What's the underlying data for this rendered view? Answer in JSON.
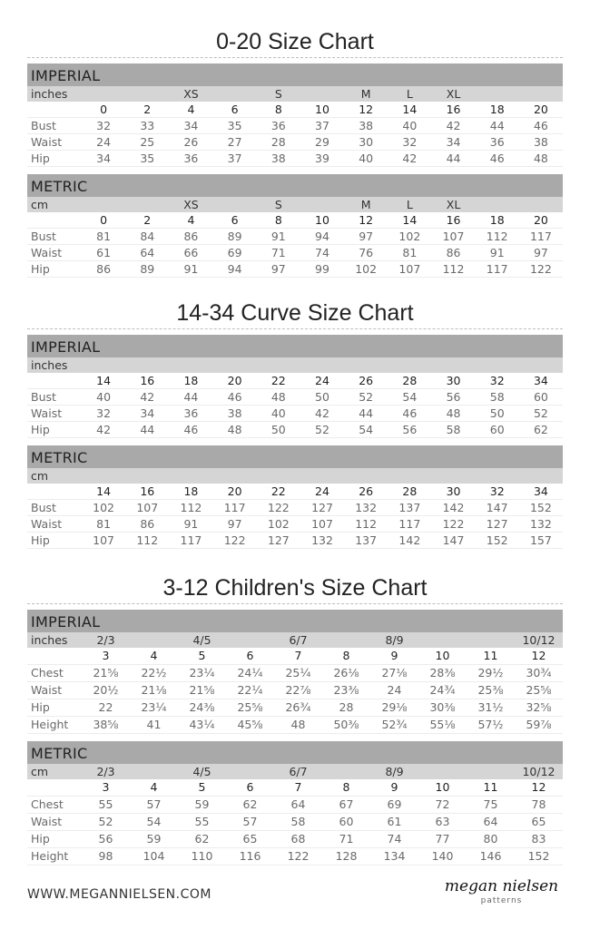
{
  "charts": [
    {
      "title": "0-20 Size Chart",
      "kids": false,
      "blocks": [
        {
          "header": "IMPERIAL",
          "unit": "inches",
          "groups": [
            "",
            "",
            "XS",
            "",
            "S",
            "",
            "M",
            "L",
            "XL",
            "",
            ""
          ],
          "sizes": [
            "0",
            "2",
            "4",
            "6",
            "8",
            "10",
            "12",
            "14",
            "16",
            "18",
            "20"
          ],
          "rows": [
            {
              "label": "Bust",
              "values": [
                "32",
                "33",
                "34",
                "35",
                "36",
                "37",
                "38",
                "40",
                "42",
                "44",
                "46"
              ]
            },
            {
              "label": "Waist",
              "values": [
                "24",
                "25",
                "26",
                "27",
                "28",
                "29",
                "30",
                "32",
                "34",
                "36",
                "38"
              ]
            },
            {
              "label": "Hip",
              "values": [
                "34",
                "35",
                "36",
                "37",
                "38",
                "39",
                "40",
                "42",
                "44",
                "46",
                "48"
              ]
            }
          ]
        },
        {
          "header": "METRIC",
          "unit": "cm",
          "groups": [
            "",
            "",
            "XS",
            "",
            "S",
            "",
            "M",
            "L",
            "XL",
            "",
            ""
          ],
          "sizes": [
            "0",
            "2",
            "4",
            "6",
            "8",
            "10",
            "12",
            "14",
            "16",
            "18",
            "20"
          ],
          "rows": [
            {
              "label": "Bust",
              "values": [
                "81",
                "84",
                "86",
                "89",
                "91",
                "94",
                "97",
                "102",
                "107",
                "112",
                "117"
              ]
            },
            {
              "label": "Waist",
              "values": [
                "61",
                "64",
                "66",
                "69",
                "71",
                "74",
                "76",
                "81",
                "86",
                "91",
                "97"
              ]
            },
            {
              "label": "Hip",
              "values": [
                "86",
                "89",
                "91",
                "94",
                "97",
                "99",
                "102",
                "107",
                "112",
                "117",
                "122"
              ]
            }
          ]
        }
      ]
    },
    {
      "title": "14-34 Curve Size Chart",
      "kids": false,
      "blocks": [
        {
          "header": "IMPERIAL",
          "unit": "inches",
          "groups": [
            "",
            "",
            "",
            "",
            "",
            "",
            "",
            "",
            "",
            "",
            ""
          ],
          "sizes": [
            "14",
            "16",
            "18",
            "20",
            "22",
            "24",
            "26",
            "28",
            "30",
            "32",
            "34"
          ],
          "rows": [
            {
              "label": "Bust",
              "values": [
                "40",
                "42",
                "44",
                "46",
                "48",
                "50",
                "52",
                "54",
                "56",
                "58",
                "60"
              ]
            },
            {
              "label": "Waist",
              "values": [
                "32",
                "34",
                "36",
                "38",
                "40",
                "42",
                "44",
                "46",
                "48",
                "50",
                "52"
              ]
            },
            {
              "label": "Hip",
              "values": [
                "42",
                "44",
                "46",
                "48",
                "50",
                "52",
                "54",
                "56",
                "58",
                "60",
                "62"
              ]
            }
          ]
        },
        {
          "header": "METRIC",
          "unit": "cm",
          "groups": [
            "",
            "",
            "",
            "",
            "",
            "",
            "",
            "",
            "",
            "",
            ""
          ],
          "sizes": [
            "14",
            "16",
            "18",
            "20",
            "22",
            "24",
            "26",
            "28",
            "30",
            "32",
            "34"
          ],
          "rows": [
            {
              "label": "Bust",
              "values": [
                "102",
                "107",
                "112",
                "117",
                "122",
                "127",
                "132",
                "137",
                "142",
                "147",
                "152"
              ]
            },
            {
              "label": "Waist",
              "values": [
                "81",
                "86",
                "91",
                "97",
                "102",
                "107",
                "112",
                "117",
                "122",
                "127",
                "132"
              ]
            },
            {
              "label": "Hip",
              "values": [
                "107",
                "112",
                "117",
                "122",
                "127",
                "132",
                "137",
                "142",
                "147",
                "152",
                "157"
              ]
            }
          ]
        }
      ]
    },
    {
      "title": "3-12 Children's Size Chart",
      "kids": true,
      "blocks": [
        {
          "header": "IMPERIAL",
          "unit": "inches",
          "groups": [
            "2/3",
            "",
            "4/5",
            "",
            "6/7",
            "",
            "8/9",
            "",
            "",
            "10/12"
          ],
          "sizes": [
            "3",
            "4",
            "5",
            "6",
            "7",
            "8",
            "9",
            "10",
            "11",
            "12"
          ],
          "rows": [
            {
              "label": "Chest",
              "values": [
                "21⅝",
                "22½",
                "23¼",
                "24¼",
                "25¼",
                "26⅛",
                "27⅛",
                "28⅜",
                "29½",
                "30¾"
              ]
            },
            {
              "label": "Waist",
              "values": [
                "20½",
                "21⅛",
                "21⅝",
                "22¼",
                "22⅞",
                "23⅜",
                "24",
                "24¾",
                "25⅜",
                "25⅝"
              ]
            },
            {
              "label": "Hip",
              "values": [
                "22",
                "23¼",
                "24⅜",
                "25⅝",
                "26¾",
                "28",
                "29⅛",
                "30⅜",
                "31½",
                "32⅝"
              ]
            },
            {
              "label": "Height",
              "values": [
                "38⅝",
                "41",
                "43¼",
                "45⅝",
                "48",
                "50⅜",
                "52¾",
                "55⅛",
                "57½",
                "59⅞"
              ]
            }
          ]
        },
        {
          "header": "METRIC",
          "unit": "cm",
          "groups": [
            "2/3",
            "",
            "4/5",
            "",
            "6/7",
            "",
            "8/9",
            "",
            "",
            "10/12"
          ],
          "sizes": [
            "3",
            "4",
            "5",
            "6",
            "7",
            "8",
            "9",
            "10",
            "11",
            "12"
          ],
          "rows": [
            {
              "label": "Chest",
              "values": [
                "55",
                "57",
                "59",
                "62",
                "64",
                "67",
                "69",
                "72",
                "75",
                "78"
              ]
            },
            {
              "label": "Waist",
              "values": [
                "52",
                "54",
                "55",
                "57",
                "58",
                "60",
                "61",
                "63",
                "64",
                "65"
              ]
            },
            {
              "label": "Hip",
              "values": [
                "56",
                "59",
                "62",
                "65",
                "68",
                "71",
                "74",
                "77",
                "80",
                "83"
              ]
            },
            {
              "label": "Height",
              "values": [
                "98",
                "104",
                "110",
                "116",
                "122",
                "128",
                "134",
                "140",
                "146",
                "152"
              ]
            }
          ]
        }
      ]
    }
  ],
  "footer": {
    "url": "WWW.MEGANNIELSEN.COM",
    "logo_text": "megan nielsen",
    "logo_sub": "patterns"
  }
}
